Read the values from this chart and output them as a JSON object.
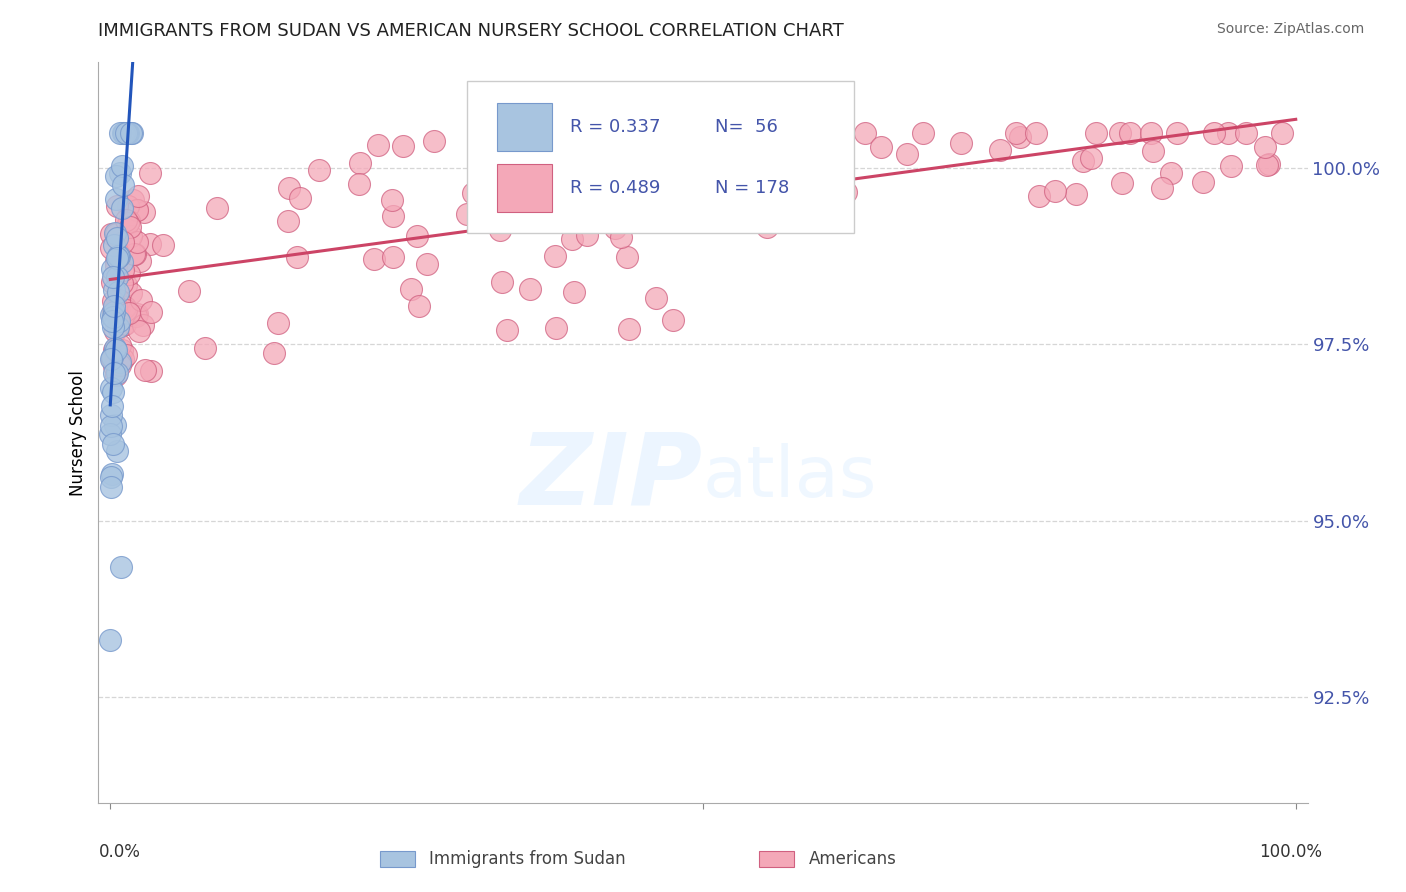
{
  "title": "IMMIGRANTS FROM SUDAN VS AMERICAN NURSERY SCHOOL CORRELATION CHART",
  "source": "Source: ZipAtlas.com",
  "ylabel": "Nursery School",
  "yticks": [
    92.5,
    95.0,
    97.5,
    100.0
  ],
  "ylim": [
    91.0,
    101.5
  ],
  "xlim": [
    -0.01,
    1.01
  ],
  "legend_r1": "R = 0.337",
  "legend_n1": "N=  56",
  "legend_r2": "R = 0.489",
  "legend_n2": "N = 178",
  "blue_color": "#A8C4E0",
  "blue_edge": "#7799CC",
  "pink_color": "#F4A8B8",
  "pink_edge": "#D06080",
  "trendline_blue": "#2255BB",
  "trendline_pink": "#CC4466",
  "watermark_zip": "ZIP",
  "watermark_atlas": "atlas",
  "title_color": "#222222",
  "source_color": "#666666",
  "ytick_color": "#4455AA",
  "grid_color": "#CCCCCC"
}
